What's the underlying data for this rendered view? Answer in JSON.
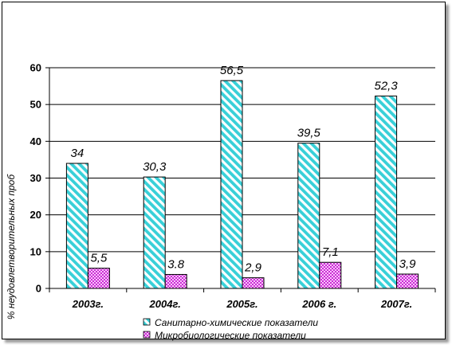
{
  "chart_data": {
    "type": "bar",
    "title": "",
    "xlabel": "",
    "ylabel": "% неудовлетворительных проб",
    "ylim": [
      0,
      60
    ],
    "yticks": [
      0,
      10,
      20,
      30,
      40,
      50,
      60
    ],
    "grid": true,
    "legend": "bottom",
    "categories": [
      "2003г.",
      "2004г.",
      "2005г.",
      "2006 г.",
      "2007г."
    ],
    "series": [
      {
        "name": "Санитарно-химические показатели",
        "values": [
          34,
          30.3,
          56.5,
          39.5,
          52.3
        ],
        "labels": [
          "34",
          "30,3",
          "56,5",
          "39,5",
          "52,3"
        ],
        "color": "#38d0d8",
        "pattern": "diagonal-stripes"
      },
      {
        "name": "Микробиологические показатели",
        "values": [
          5.5,
          3.8,
          2.9,
          7.1,
          3.9
        ],
        "labels": [
          "5,5",
          "3.8",
          "2,9",
          "7,1",
          "3,9"
        ],
        "color": "#cc2bd6",
        "pattern": "checker"
      }
    ]
  }
}
